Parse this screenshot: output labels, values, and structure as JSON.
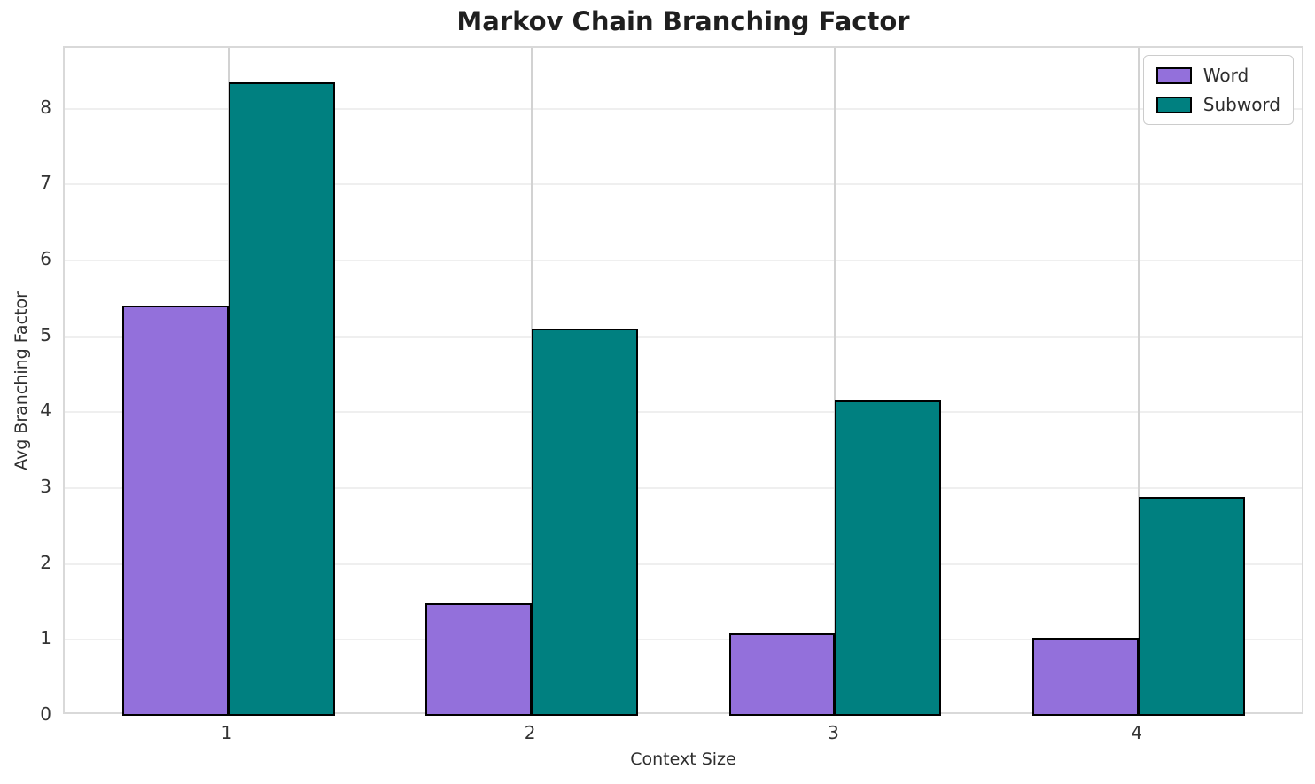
{
  "chart_data": {
    "type": "bar",
    "title": "Markov Chain Branching Factor",
    "xlabel": "Context Size",
    "ylabel": "Avg Branching Factor",
    "categories": [
      "1",
      "2",
      "3",
      "4"
    ],
    "series": [
      {
        "name": "Word",
        "color": "#9370DB",
        "values": [
          5.4,
          1.48,
          1.08,
          1.03
        ]
      },
      {
        "name": "Subword",
        "color": "#008080",
        "values": [
          8.35,
          5.1,
          4.15,
          2.88
        ]
      }
    ],
    "yticks": [
      0,
      1,
      2,
      3,
      4,
      5,
      6,
      7,
      8
    ],
    "ylim": [
      0,
      8.8
    ],
    "xlim": [
      0.46,
      4.55
    ],
    "bar_width": 0.35,
    "bar_edge_color": "#000000",
    "grid": true,
    "legend_position": "upper right"
  }
}
